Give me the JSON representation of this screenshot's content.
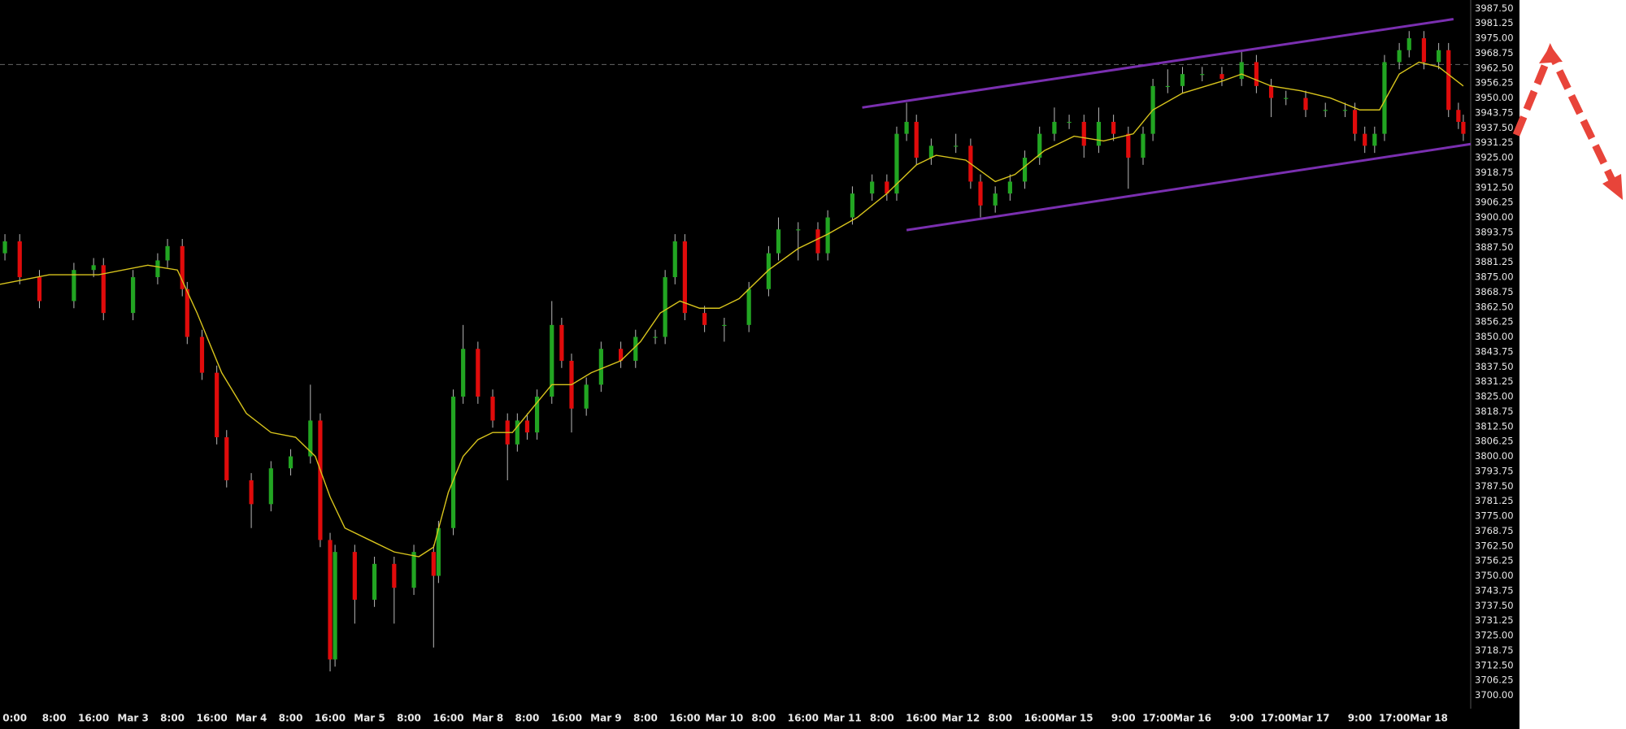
{
  "chart_data": {
    "type": "candlestick",
    "up_color": "#22a522",
    "down_color": "#e00b0b",
    "wick_color": "#b8b8b8",
    "x": [
      1,
      4,
      8,
      15,
      19,
      21,
      27,
      32,
      34,
      37,
      38,
      41,
      44,
      46,
      51,
      55,
      59,
      63,
      65,
      67,
      68,
      72,
      76,
      80,
      84,
      88,
      89,
      92,
      94,
      97,
      100,
      103,
      105,
      107,
      109,
      112,
      114,
      116,
      119,
      122,
      126,
      129,
      133,
      135,
      137,
      139,
      143,
      147,
      152,
      156,
      158,
      162,
      166,
      168,
      173,
      177,
      180,
      182,
      184,
      186,
      189,
      194,
      197,
      199,
      202,
      205,
      208,
      211,
      214,
      217,
      220,
      223,
      226,
      229,
      232,
      234,
      237,
      240,
      244,
      248,
      252,
      255,
      258,
      261,
      265,
      269,
      273,
      275,
      277,
      279,
      281,
      284,
      286,
      289,
      292,
      294,
      296,
      297
    ],
    "open": [
      3885,
      3890,
      3875,
      3865,
      3878,
      3880,
      3860,
      3875,
      3882,
      3888,
      3870,
      3850,
      3835,
      3808,
      3790,
      3780,
      3795,
      3800,
      3815,
      3765,
      3715,
      3760,
      3740,
      3755,
      3745,
      3760,
      3750,
      3770,
      3825,
      3845,
      3825,
      3815,
      3805,
      3815,
      3810,
      3825,
      3855,
      3840,
      3820,
      3830,
      3845,
      3840,
      3850,
      3850,
      3875,
      3890,
      3860,
      3855,
      3855,
      3870,
      3885,
      3895,
      3895,
      3885,
      3900,
      3910,
      3915,
      3910,
      3935,
      3940,
      3925,
      3930,
      3930,
      3915,
      3905,
      3910,
      3915,
      3925,
      3935,
      3940,
      3940,
      3930,
      3940,
      3935,
      3925,
      3935,
      3955,
      3955,
      3960,
      3960,
      3958,
      3965,
      3955,
      3950,
      3950,
      3945,
      3945,
      3945,
      3935,
      3930,
      3935,
      3965,
      3970,
      3975,
      3965,
      3970,
      3945,
      3940
    ],
    "high": [
      3893,
      3893,
      3878,
      3881,
      3883,
      3883,
      3878,
      3885,
      3891,
      3891,
      3873,
      3853,
      3838,
      3811,
      3793,
      3798,
      3803,
      3830,
      3818,
      3768,
      3763,
      3763,
      3758,
      3758,
      3763,
      3763,
      3773,
      3828,
      3855,
      3848,
      3828,
      3818,
      3818,
      3818,
      3828,
      3865,
      3858,
      3843,
      3833,
      3848,
      3848,
      3853,
      3853,
      3878,
      3893,
      3893,
      3863,
      3858,
      3873,
      3888,
      3900,
      3898,
      3898,
      3903,
      3913,
      3918,
      3918,
      3938,
      3948,
      3943,
      3933,
      3935,
      3933,
      3918,
      3913,
      3918,
      3928,
      3938,
      3946,
      3943,
      3943,
      3946,
      3943,
      3938,
      3938,
      3958,
      3962,
      3963,
      3963,
      3963,
      3970,
      3968,
      3958,
      3953,
      3953,
      3948,
      3948,
      3948,
      3938,
      3938,
      3968,
      3973,
      3978,
      3978,
      3973,
      3973,
      3948,
      3943
    ],
    "low": [
      3882,
      3872,
      3862,
      3862,
      3875,
      3857,
      3857,
      3872,
      3879,
      3867,
      3847,
      3832,
      3805,
      3787,
      3770,
      3777,
      3792,
      3797,
      3762,
      3710,
      3712,
      3730,
      3737,
      3730,
      3742,
      3720,
      3747,
      3767,
      3822,
      3822,
      3812,
      3790,
      3802,
      3807,
      3807,
      3822,
      3837,
      3810,
      3817,
      3827,
      3837,
      3837,
      3847,
      3847,
      3872,
      3857,
      3852,
      3848,
      3852,
      3867,
      3882,
      3882,
      3882,
      3882,
      3897,
      3907,
      3907,
      3907,
      3932,
      3922,
      3922,
      3927,
      3912,
      3900,
      3902,
      3907,
      3912,
      3922,
      3932,
      3937,
      3925,
      3927,
      3932,
      3912,
      3922,
      3932,
      3952,
      3952,
      3957,
      3955,
      3955,
      3952,
      3942,
      3947,
      3942,
      3942,
      3942,
      3932,
      3927,
      3927,
      3932,
      3962,
      3967,
      3962,
      3962,
      3942,
      3937,
      3932
    ],
    "close": [
      3890,
      3875,
      3865,
      3878,
      3880,
      3860,
      3875,
      3882,
      3888,
      3870,
      3850,
      3835,
      3808,
      3790,
      3780,
      3795,
      3800,
      3815,
      3765,
      3715,
      3760,
      3740,
      3755,
      3745,
      3760,
      3750,
      3770,
      3825,
      3845,
      3825,
      3815,
      3805,
      3815,
      3810,
      3825,
      3855,
      3840,
      3820,
      3830,
      3845,
      3840,
      3850,
      3850,
      3875,
      3890,
      3860,
      3855,
      3855,
      3870,
      3885,
      3895,
      3895,
      3885,
      3900,
      3910,
      3915,
      3910,
      3935,
      3940,
      3925,
      3930,
      3930,
      3915,
      3905,
      3910,
      3915,
      3925,
      3935,
      3940,
      3940,
      3930,
      3940,
      3935,
      3925,
      3935,
      3955,
      3955,
      3960,
      3960,
      3958,
      3965,
      3955,
      3950,
      3950,
      3945,
      3945,
      3945,
      3935,
      3930,
      3935,
      3965,
      3970,
      3975,
      3965,
      3970,
      3945,
      3940,
      3935
    ],
    "moving_average": {
      "color": "#d8c41c",
      "x": [
        0,
        10,
        20,
        30,
        36,
        40,
        45,
        50,
        55,
        60,
        64,
        67,
        70,
        75,
        80,
        85,
        88,
        91,
        94,
        97,
        100,
        104,
        108,
        112,
        116,
        120,
        126,
        130,
        134,
        138,
        142,
        146,
        150,
        156,
        162,
        168,
        174,
        180,
        186,
        190,
        196,
        202,
        206,
        212,
        218,
        224,
        230,
        234,
        240,
        248,
        252,
        258,
        264,
        270,
        276,
        280,
        284,
        288,
        292,
        297
      ],
      "values": [
        3872,
        3876,
        3876,
        3880,
        3878,
        3860,
        3835,
        3818,
        3810,
        3808,
        3800,
        3783,
        3770,
        3765,
        3760,
        3758,
        3762,
        3785,
        3800,
        3807,
        3810,
        3810,
        3820,
        3830,
        3830,
        3835,
        3840,
        3848,
        3860,
        3865,
        3862,
        3862,
        3866,
        3878,
        3887,
        3893,
        3900,
        3910,
        3922,
        3926,
        3924,
        3915,
        3918,
        3928,
        3934,
        3932,
        3935,
        3945,
        3952,
        3957,
        3960,
        3955,
        3953,
        3950,
        3945,
        3945,
        3960,
        3965,
        3963,
        3955
      ]
    },
    "trendline_color": "#7a2fb0",
    "trendlines": [
      {
        "x": [
          175,
          295
        ],
        "values": [
          3946,
          3983
        ]
      },
      {
        "x": [
          184,
          298.5
        ],
        "values": [
          3894.7,
          3930.7
        ]
      }
    ],
    "price_line": 3964,
    "xlim": [
      0,
      298.5
    ],
    "xticks": [
      {
        "value": 3,
        "label": "0:00"
      },
      {
        "value": 11,
        "label": "8:00"
      },
      {
        "value": 19,
        "label": "16:00"
      },
      {
        "value": 27,
        "label": "Mar 3"
      },
      {
        "value": 35,
        "label": "8:00"
      },
      {
        "value": 43,
        "label": "16:00"
      },
      {
        "value": 51,
        "label": "Mar 4"
      },
      {
        "value": 59,
        "label": "8:00"
      },
      {
        "value": 67,
        "label": "16:00"
      },
      {
        "value": 75,
        "label": "Mar 5"
      },
      {
        "value": 83,
        "label": "8:00"
      },
      {
        "value": 91,
        "label": "16:00"
      },
      {
        "value": 99,
        "label": "Mar 8"
      },
      {
        "value": 107,
        "label": "8:00"
      },
      {
        "value": 115,
        "label": "16:00"
      },
      {
        "value": 123,
        "label": "Mar 9"
      },
      {
        "value": 131,
        "label": "8:00"
      },
      {
        "value": 139,
        "label": "16:00"
      },
      {
        "value": 147,
        "label": "Mar 10"
      },
      {
        "value": 155,
        "label": "8:00"
      },
      {
        "value": 163,
        "label": "16:00"
      },
      {
        "value": 171,
        "label": "Mar 11"
      },
      {
        "value": 179,
        "label": "8:00"
      },
      {
        "value": 187,
        "label": "16:00"
      },
      {
        "value": 195,
        "label": "Mar 12"
      },
      {
        "value": 203,
        "label": "8:00"
      },
      {
        "value": 211,
        "label": "16:00"
      },
      {
        "value": 218,
        "label": "Mar 15"
      },
      {
        "value": 228,
        "label": "9:00"
      },
      {
        "value": 235,
        "label": "17:00"
      },
      {
        "value": 242,
        "label": "Mar 16"
      },
      {
        "value": 252,
        "label": "9:00"
      },
      {
        "value": 259,
        "label": "17:00"
      },
      {
        "value": 266,
        "label": "Mar 17"
      },
      {
        "value": 276,
        "label": "9:00"
      },
      {
        "value": 283,
        "label": "17:00"
      },
      {
        "value": 290,
        "label": "Mar 18"
      }
    ],
    "ylim": [
      3694.4,
      3991
    ],
    "yticks": [
      {
        "value": 3700,
        "label": "3700.00"
      },
      {
        "value": 3706.25,
        "label": "3706.25"
      },
      {
        "value": 3712.5,
        "label": "3712.50"
      },
      {
        "value": 3718.75,
        "label": "3718.75"
      },
      {
        "value": 3725,
        "label": "3725.00"
      },
      {
        "value": 3731.25,
        "label": "3731.25"
      },
      {
        "value": 3737.5,
        "label": "3737.50"
      },
      {
        "value": 3743.75,
        "label": "3743.75"
      },
      {
        "value": 3750,
        "label": "3750.00"
      },
      {
        "value": 3756.25,
        "label": "3756.25"
      },
      {
        "value": 3762.5,
        "label": "3762.50"
      },
      {
        "value": 3768.75,
        "label": "3768.75"
      },
      {
        "value": 3775,
        "label": "3775.00"
      },
      {
        "value": 3781.25,
        "label": "3781.25"
      },
      {
        "value": 3787.5,
        "label": "3787.50"
      },
      {
        "value": 3793.75,
        "label": "3793.75"
      },
      {
        "value": 3800,
        "label": "3800.00"
      },
      {
        "value": 3806.25,
        "label": "3806.25"
      },
      {
        "value": 3812.5,
        "label": "3812.50"
      },
      {
        "value": 3818.75,
        "label": "3818.75"
      },
      {
        "value": 3825,
        "label": "3825.00"
      },
      {
        "value": 3831.25,
        "label": "3831.25"
      },
      {
        "value": 3837.5,
        "label": "3837.50"
      },
      {
        "value": 3843.75,
        "label": "3843.75"
      },
      {
        "value": 3850,
        "label": "3850.00"
      },
      {
        "value": 3856.25,
        "label": "3856.25"
      },
      {
        "value": 3862.5,
        "label": "3862.50"
      },
      {
        "value": 3868.75,
        "label": "3868.75"
      },
      {
        "value": 3875,
        "label": "3875.00"
      },
      {
        "value": 3881.25,
        "label": "3881.25"
      },
      {
        "value": 3887.5,
        "label": "3887.50"
      },
      {
        "value": 3893.75,
        "label": "3893.75"
      },
      {
        "value": 3900,
        "label": "3900.00"
      },
      {
        "value": 3906.25,
        "label": "3906.25"
      },
      {
        "value": 3912.5,
        "label": "3912.50"
      },
      {
        "value": 3918.75,
        "label": "3918.75"
      },
      {
        "value": 3925,
        "label": "3925.00"
      },
      {
        "value": 3931.25,
        "label": "3931.25"
      },
      {
        "value": 3937.5,
        "label": "3937.50"
      },
      {
        "value": 3943.75,
        "label": "3943.75"
      },
      {
        "value": 3950,
        "label": "3950.00"
      },
      {
        "value": 3956.25,
        "label": "3956.25"
      },
      {
        "value": 3962.5,
        "label": "3962.50"
      },
      {
        "value": 3968.75,
        "label": "3968.75"
      },
      {
        "value": 3975,
        "label": "3975.00"
      },
      {
        "value": 3981.25,
        "label": "3981.25"
      },
      {
        "value": 3987.5,
        "label": "3987.50"
      }
    ],
    "grid": true
  }
}
